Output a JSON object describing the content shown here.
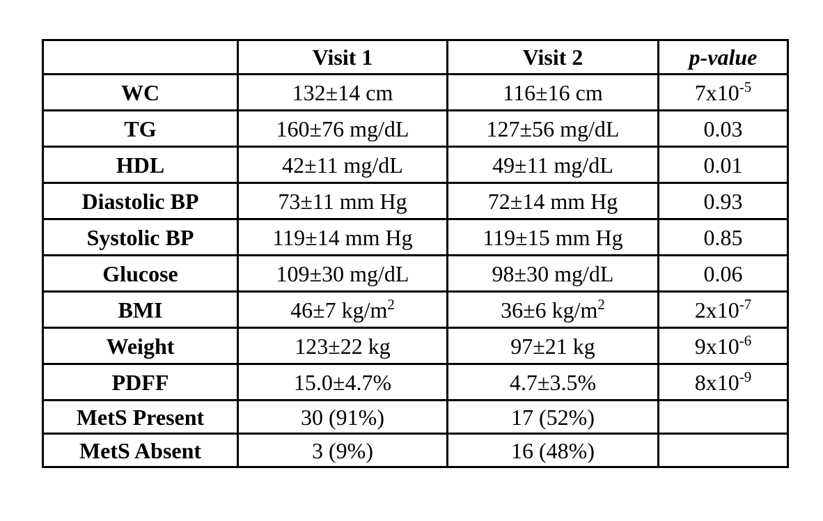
{
  "table": {
    "header": [
      "Visit 1",
      "Visit 2",
      "p-value"
    ],
    "rows": [
      [
        "WC",
        "132±14 cm",
        "116±16 cm",
        {
          "base": "7x10",
          "sup": "-5"
        }
      ],
      [
        "TG",
        "160±76 mg/dL",
        "127±56 mg/dL",
        "0.03"
      ],
      [
        "HDL",
        "42±11 mg/dL",
        "49±11 mg/dL",
        "0.01"
      ],
      [
        "Diastolic BP",
        "73±11 mm Hg",
        "72±14 mm Hg",
        "0.93"
      ],
      [
        "Systolic BP",
        "119±14 mm Hg",
        "119±15 mm Hg",
        "0.85"
      ],
      [
        "Glucose",
        "109±30 mg/dL",
        "98±30 mg/dL",
        "0.06"
      ],
      [
        "BMI",
        {
          "base": "46±7 kg/m",
          "sup": "2"
        },
        {
          "base": "36±6 kg/m",
          "sup": "2"
        },
        {
          "base": "2x10",
          "sup": "-7"
        }
      ],
      [
        "Weight",
        "123±22 kg",
        "97±21 kg",
        {
          "base": "9x10",
          "sup": "-6"
        }
      ],
      [
        "PDFF",
        "15.0±4.7%",
        "4.7±3.5%",
        {
          "base": "8x10",
          "sup": "-9"
        }
      ],
      [
        "MetS Present",
        "30 (91%)",
        "17 (52%)"
      ],
      [
        "MetS Absent",
        "3 (9%)",
        "16 (48%)"
      ]
    ]
  }
}
